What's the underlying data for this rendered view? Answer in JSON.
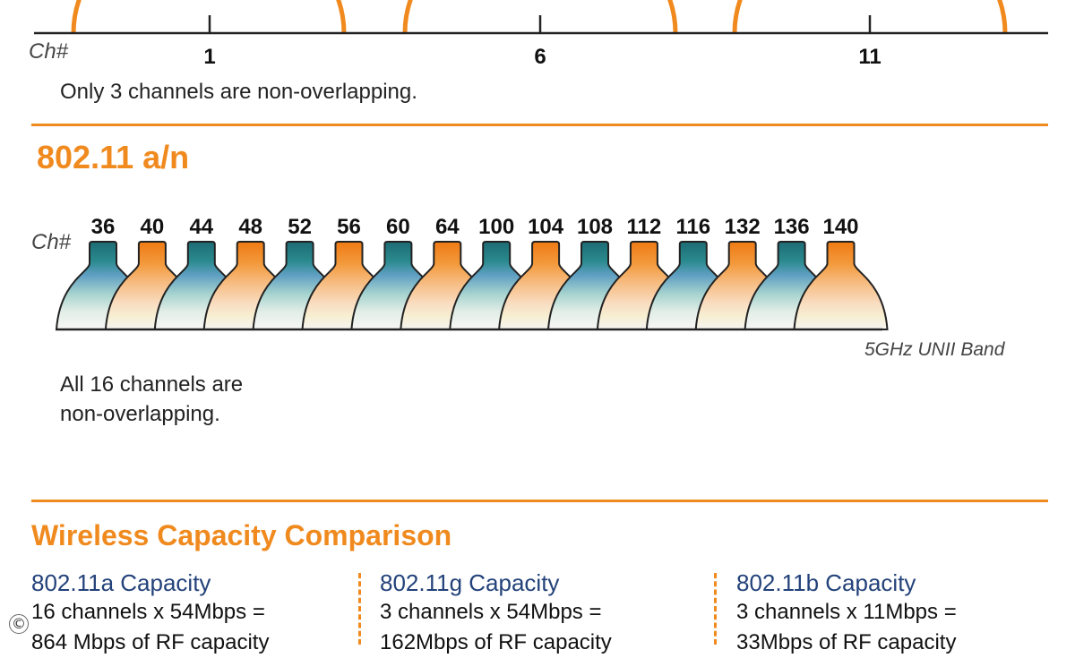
{
  "bg_section": {
    "ch_label": "Ch#",
    "channels": [
      "1",
      "6",
      "11"
    ],
    "note": "Only 3 channels are non-overlapping."
  },
  "an_section": {
    "heading": "802.11 a/n",
    "ch_label": "Ch#",
    "channels": [
      "36",
      "40",
      "44",
      "48",
      "52",
      "56",
      "60",
      "64",
      "100",
      "104",
      "108",
      "112",
      "116",
      "132",
      "136",
      "140"
    ],
    "band_label": "5GHz UNII Band",
    "note_line1": "All 16 channels are",
    "note_line2": "non-overlapping."
  },
  "capacity": {
    "heading": "Wireless Capacity Comparison",
    "columns": [
      {
        "title": "802.11a Capacity",
        "line1": "16 channels x 54Mbps =",
        "line2": "864 Mbps of RF capacity"
      },
      {
        "title": "802.11g Capacity",
        "line1": "3 channels x 54Mbps =",
        "line2": "162Mbps of RF capacity"
      },
      {
        "title": "802.11b Capacity",
        "line1": "3 channels x 11Mbps =",
        "line2": "33Mbps of RF capacity"
      }
    ]
  },
  "copyright_symbol": "©",
  "colors": {
    "accent": "#f08a1e",
    "navy": "#23427a",
    "teal": "#1f6f78",
    "orange_cap": "#f07f1a"
  }
}
